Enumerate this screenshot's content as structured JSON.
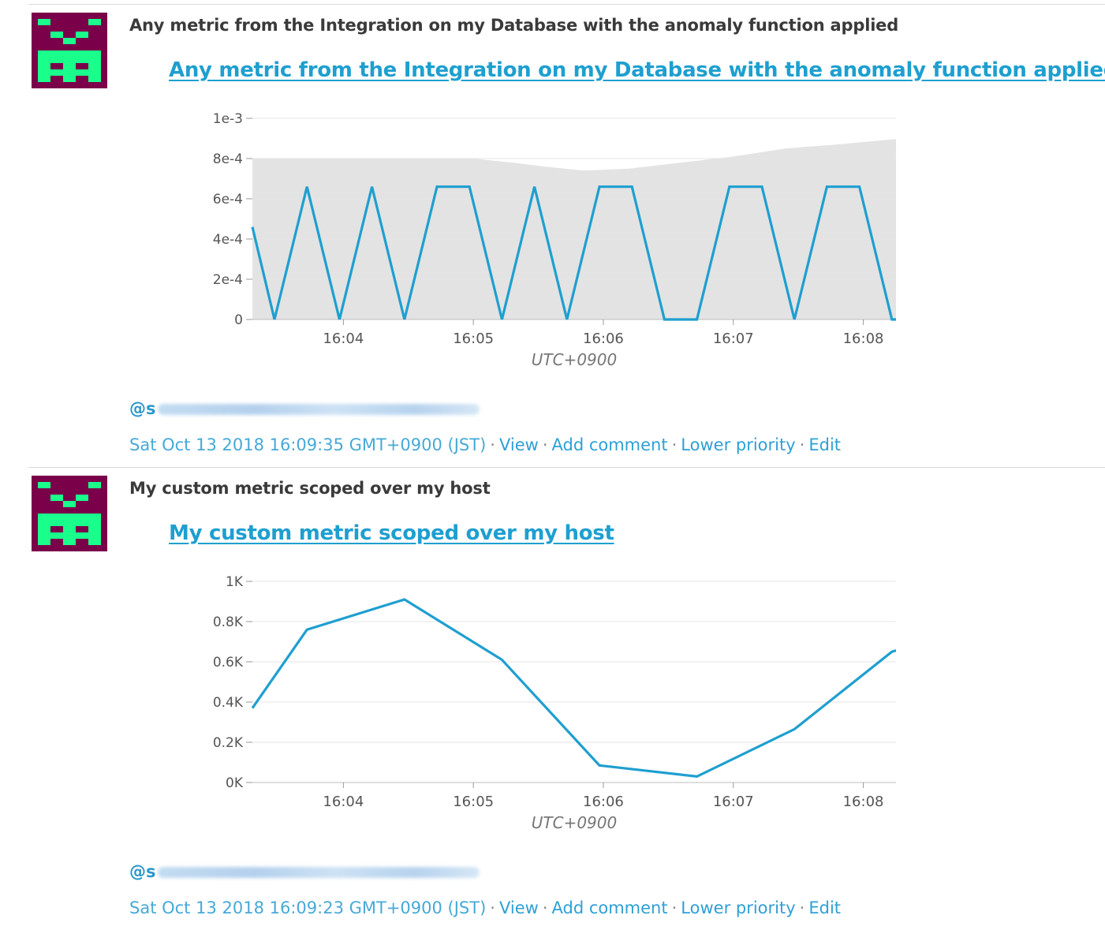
{
  "colors": {
    "avatar_bg": "#7a004a",
    "avatar_fg": "#1aff8c",
    "link": "#1e9fd0",
    "series_line": "#1e9fd0",
    "band": "#e3e3e3",
    "meta": "#47a9d7"
  },
  "icons": {
    "avatar": "pixel-invader-avatar"
  },
  "events": [
    {
      "title": "Any metric from the Integration on my Database with the anomaly function applied",
      "graph_link": "Any metric from the Integration on my Database with the anomaly function applied",
      "author_prefix": "@s",
      "timestamp": "Sat Oct 13 2018 16:09:35 GMT+0900 (JST)",
      "actions": [
        "View",
        "Add comment",
        "Lower priority",
        "Edit"
      ],
      "chart": {
        "timezone_label": "UTC+0900",
        "y_ticks": [
          "1e-3",
          "8e-4",
          "6e-4",
          "4e-4",
          "2e-4",
          "0"
        ],
        "x_ticks": [
          "16:04",
          "16:05",
          "16:06",
          "16:07",
          "16:08"
        ]
      }
    },
    {
      "title": "My custom metric scoped over my host",
      "graph_link": "My custom metric scoped over my host",
      "author_prefix": "@s",
      "timestamp": "Sat Oct 13 2018 16:09:23 GMT+0900 (JST)",
      "actions": [
        "View",
        "Add comment",
        "Lower priority",
        "Edit"
      ],
      "chart": {
        "timezone_label": "UTC+0900",
        "y_ticks": [
          "1K",
          "0.8K",
          "0.6K",
          "0.4K",
          "0.2K",
          "0K"
        ],
        "x_ticks": [
          "16:04",
          "16:05",
          "16:06",
          "16:07",
          "16:08"
        ]
      }
    }
  ],
  "chart_data": [
    {
      "type": "line",
      "title": "Any metric from the Integration on my Database with the anomaly function applied",
      "xlabel": "UTC+0900",
      "ylabel": "",
      "x_unit": "minutes after 16:00",
      "xlim": [
        3.3,
        8.3
      ],
      "ylim": [
        0,
        0.001
      ],
      "x_tick_values": [
        4,
        5,
        6,
        7,
        8
      ],
      "y_tick_values": [
        0.001,
        0.0008,
        0.0006,
        0.0004,
        0.0002,
        0
      ],
      "grid": true,
      "series": [
        {
          "x": [
            3.3,
            3.47,
            3.72,
            3.97,
            4.22,
            4.47,
            4.72,
            4.97,
            5.22,
            5.47,
            5.72,
            5.97,
            6.22,
            6.47,
            6.72,
            6.97,
            7.22,
            7.47,
            7.72,
            7.97,
            8.22,
            8.3
          ],
          "y": [
            0.00046,
            0,
            0.00066,
            0,
            0.00066,
            0,
            0.00066,
            0.00066,
            0,
            0.00066,
            0,
            0.00066,
            0.00066,
            0,
            0,
            0.00066,
            0.00066,
            0,
            0.00066,
            0.00066,
            0,
            0
          ]
        }
      ],
      "band": {
        "x": [
          3.3,
          4.0,
          5.0,
          5.3,
          5.55,
          5.85,
          6.2,
          6.6,
          7.0,
          7.4,
          7.8,
          8.3
        ],
        "y_upper": [
          0.0008,
          0.0008,
          0.0008,
          0.00078,
          0.00076,
          0.00074,
          0.00075,
          0.00078,
          0.00081,
          0.00085,
          0.00087,
          0.0009
        ],
        "y_lower": [
          0,
          0,
          0,
          0,
          0,
          0,
          0,
          0,
          0,
          0,
          0,
          0
        ]
      }
    },
    {
      "type": "line",
      "title": "My custom metric scoped over my host",
      "xlabel": "UTC+0900",
      "ylabel": "",
      "x_unit": "minutes after 16:00",
      "xlim": [
        3.3,
        8.3
      ],
      "ylim": [
        0,
        1000
      ],
      "x_tick_values": [
        4,
        5,
        6,
        7,
        8
      ],
      "y_tick_values": [
        1000,
        800,
        600,
        400,
        200,
        0
      ],
      "grid": true,
      "series": [
        {
          "x": [
            3.3,
            3.72,
            4.47,
            5.22,
            5.97,
            6.72,
            7.47,
            8.22,
            8.3
          ],
          "y": [
            370,
            760,
            910,
            610,
            85,
            30,
            265,
            650,
            665
          ]
        }
      ]
    }
  ]
}
